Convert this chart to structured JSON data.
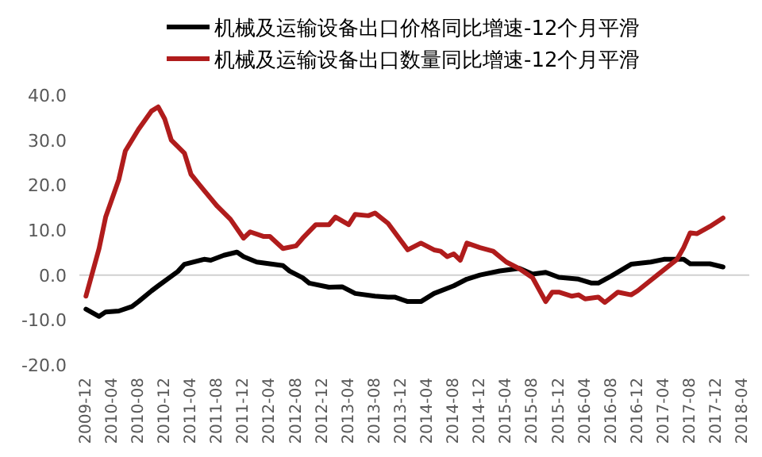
{
  "chart_data": {
    "type": "line",
    "legend": "top",
    "ylim": [
      -20,
      40
    ],
    "yticks": [
      {
        "value": -20,
        "label": "-20.0"
      },
      {
        "value": -10,
        "label": "-10.0"
      },
      {
        "value": 0,
        "label": "0.0"
      },
      {
        "value": 10,
        "label": "10.0"
      },
      {
        "value": 20,
        "label": "20.0"
      },
      {
        "value": 30,
        "label": "30.0"
      },
      {
        "value": 40,
        "label": "40.0"
      }
    ],
    "xlim": [
      "2009-11",
      "2018-05"
    ],
    "xticks": [
      "2009-12",
      "2010-04",
      "2010-08",
      "2010-12",
      "2011-04",
      "2011-08",
      "2011-12",
      "2012-04",
      "2012-08",
      "2012-12",
      "2013-04",
      "2013-08",
      "2013-12",
      "2014-04",
      "2014-08",
      "2014-12",
      "2015-04",
      "2015-08",
      "2015-12",
      "2016-04",
      "2016-08",
      "2016-12",
      "2017-04",
      "2017-08",
      "2017-12",
      "2018-04"
    ],
    "series": [
      {
        "name": "机械及运输设备出口价格同比增速-12个月平滑",
        "color": "#000000",
        "x": [
          "2009-12",
          "2010-02",
          "2010-03",
          "2010-05",
          "2010-07",
          "2010-08",
          "2010-10",
          "2010-11",
          "2011-02",
          "2011-03",
          "2011-06",
          "2011-07",
          "2011-09",
          "2011-11",
          "2011-12",
          "2012-02",
          "2012-06",
          "2012-07",
          "2012-09",
          "2012-10",
          "2013-01",
          "2013-03",
          "2013-05",
          "2013-08",
          "2013-10",
          "2013-11",
          "2014-01",
          "2014-03",
          "2014-05",
          "2014-08",
          "2014-10",
          "2014-12",
          "2015-03",
          "2015-06",
          "2015-08",
          "2015-10",
          "2015-12",
          "2016-03",
          "2016-05",
          "2016-06",
          "2016-08",
          "2016-11",
          "2017-02",
          "2017-04",
          "2017-07",
          "2017-08",
          "2017-11",
          "2018-01"
        ],
        "values": [
          -7.6,
          -9.2,
          -8.2,
          -8.0,
          -7.0,
          -5.9,
          -3.5,
          -2.4,
          0.8,
          2.4,
          3.5,
          3.3,
          4.4,
          5.1,
          4.1,
          2.9,
          2.1,
          0.9,
          -0.6,
          -1.8,
          -2.7,
          -2.6,
          -4.1,
          -4.7,
          -4.9,
          -4.9,
          -5.9,
          -5.9,
          -4.1,
          -2.4,
          -0.9,
          0,
          0.9,
          1.5,
          0.2,
          0.6,
          -0.5,
          -0.9,
          -1.8,
          -1.8,
          -0.2,
          2.4,
          2.9,
          3.5,
          3.5,
          2.5,
          2.5,
          1.8
        ]
      },
      {
        "name": "机械及运输设备出口数量同比增速-12个月平滑",
        "color": "#b01c1c",
        "x": [
          "2009-12",
          "2010-02",
          "2010-03",
          "2010-05",
          "2010-06",
          "2010-08",
          "2010-10",
          "2010-11",
          "2010-12",
          "2011-01",
          "2011-03",
          "2011-04",
          "2011-06",
          "2011-08",
          "2011-10",
          "2011-12",
          "2012-01",
          "2012-03",
          "2012-04",
          "2012-06",
          "2012-08",
          "2012-09",
          "2012-11",
          "2013-01",
          "2013-02",
          "2013-04",
          "2013-05",
          "2013-07",
          "2013-08",
          "2013-10",
          "2014-01",
          "2014-03",
          "2014-05",
          "2014-06",
          "2014-07",
          "2014-08",
          "2014-09",
          "2014-10",
          "2014-12",
          "2015-02",
          "2015-04",
          "2015-06",
          "2015-08",
          "2015-10",
          "2015-11",
          "2015-12",
          "2016-02",
          "2016-03",
          "2016-04",
          "2016-06",
          "2016-07",
          "2016-09",
          "2016-11",
          "2016-12",
          "2017-03",
          "2017-06",
          "2017-07",
          "2017-08",
          "2017-09",
          "2017-11",
          "2018-01"
        ],
        "values": [
          -4.7,
          5.9,
          12.9,
          21.2,
          27.6,
          32.4,
          36.5,
          37.4,
          34.7,
          30,
          27.1,
          22.4,
          18.8,
          15.3,
          12.4,
          8.2,
          9.6,
          8.6,
          8.6,
          5.9,
          6.5,
          8.2,
          11.2,
          11.2,
          12.9,
          11.2,
          13.5,
          13.2,
          13.8,
          11.5,
          5.6,
          7.1,
          5.6,
          5.3,
          4.1,
          4.7,
          3.3,
          7.1,
          6.1,
          5.3,
          2.9,
          1.4,
          -0.6,
          -5.9,
          -3.8,
          -3.8,
          -4.7,
          -4.4,
          -5.3,
          -4.9,
          -6.1,
          -3.8,
          -4.4,
          -3.5,
          0,
          3.5,
          6.1,
          9.4,
          9.2,
          10.8,
          12.7
        ]
      }
    ]
  }
}
